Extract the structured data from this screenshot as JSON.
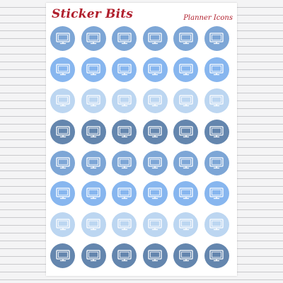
{
  "header": {
    "brand": "Sticker Bits",
    "subtitle": "Planner Icons"
  },
  "colors": {
    "brand": "#b01e2c",
    "icon": "#ffffff",
    "rows": [
      "#7da6d6",
      "#87b6ef",
      "#bcd6f1",
      "#6486ae",
      "#7da6d6",
      "#87b6ef",
      "#bcd6f1",
      "#6486ae"
    ]
  },
  "stickers": {
    "icon": "monitor-icon",
    "rows": 8,
    "columns": 6
  }
}
